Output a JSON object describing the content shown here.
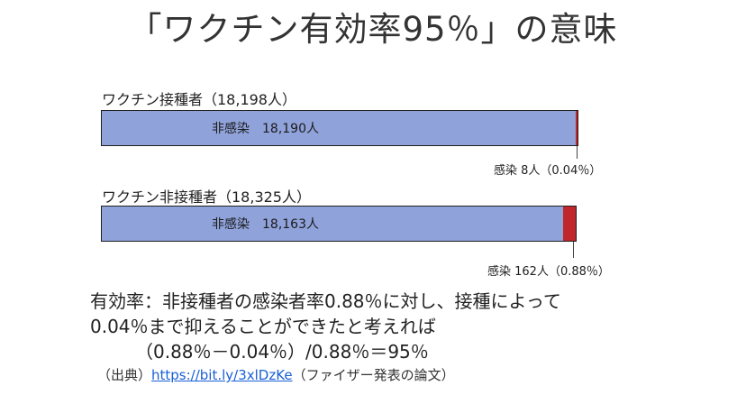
{
  "title": "「ワクチン有効率95％」の意味",
  "chart_data": {
    "type": "bar",
    "orientation": "horizontal",
    "stacked": true,
    "groups": [
      {
        "label": "ワクチン接種者（18,198人）",
        "total": 18198,
        "non_infected_label": "非感染",
        "non_infected": 18190,
        "non_infected_text": "18,190人",
        "infected": 8,
        "infected_text": "感染 8人（0.04％）"
      },
      {
        "label": "ワクチン非接種者（18,325人）",
        "total": 18325,
        "non_infected_label": "非感染",
        "non_infected": 18163,
        "non_infected_text": "18,163人",
        "infected": 162,
        "infected_text": "感染 162人（0.88％）"
      }
    ],
    "colors": {
      "non_infected": "#8fa2da",
      "infected": "#c0272d"
    }
  },
  "explanation": {
    "line1": "有効率：非接種者の感染者率0.88％に対し、接種によって",
    "line2": "0.04％まで抑えることができたと考えれば",
    "line3": "（0.88％－0.04％）/0.88％＝95％"
  },
  "source": {
    "prefix": "（出典）",
    "link_text": "https://bit.ly/3xlDzKe",
    "suffix": "（ファイザー発表の論文）"
  }
}
